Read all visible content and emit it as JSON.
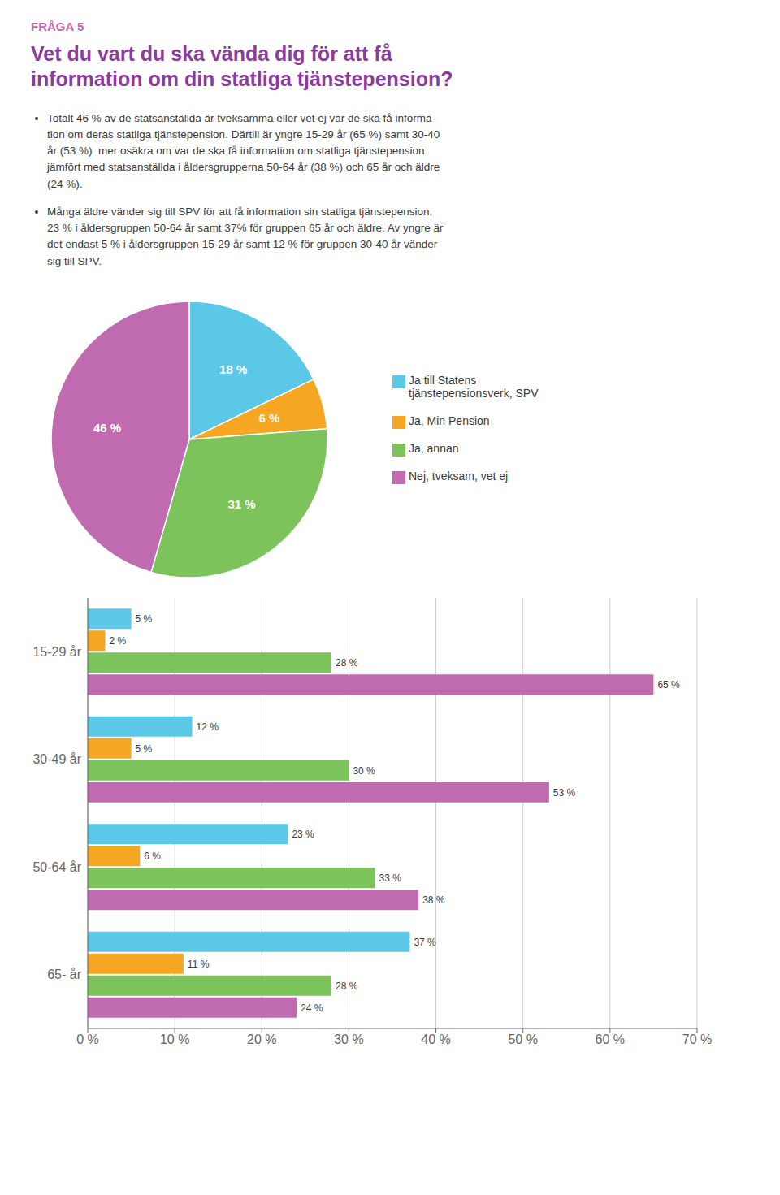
{
  "chart_data": [
    {
      "type": "pie",
      "subtitle": "FRÅGA 5",
      "title": "Vet du vart du ska vända dig för att få\ninformation om din statliga tjänstepension?",
      "annotations": [
        "Totalt 46 % av de statsanställda är tveksamma eller vet ej var de ska få informa-\ntion om deras statliga tjänstepension. Därtill är yngre 15-29 år (65 %) samt 30-40\når (53 %)  mer osäkra om var de ska få information om statliga tjänstepension\njämfört med statsanställda i åldersgrupperna 50-64 år (38 %) och 65 år och äldre\n(24 %).",
        "Många äldre vänder sig till SPV för att få information sin statliga tjänstepension,\n23 % i åldersgruppen 50-64 år samt 37% för gruppen 65 år och äldre. Av yngre är\ndet endast 5 % i åldersgruppen 15-29 år samt 12 % för gruppen 30-40 år vänder\nsig till SPV."
      ],
      "categories": [
        "Ja till Statens\ntjänstepensionsverk, SPV",
        "Ja, Min Pension",
        "Ja, annan",
        "Nej, tveksam, vet ej"
      ],
      "values": [
        18,
        6,
        31,
        46
      ],
      "value_labels": [
        "18 %",
        "6 %",
        "31 %",
        "46 %"
      ],
      "colors": [
        "#5BC8E8",
        "#F5A623",
        "#7DC35B",
        "#C06BB0"
      ],
      "data_labels": true,
      "legend": "right"
    },
    {
      "type": "bar",
      "orientation": "horizontal",
      "categories": [
        "15-29 år",
        "30-49 år",
        "50-64 år",
        "65- år"
      ],
      "series": [
        {
          "color": "#5BC8E8",
          "values": [
            5,
            12,
            23,
            37
          ],
          "value_labels": [
            "5 %",
            "12 %",
            "23 %",
            "37 %"
          ]
        },
        {
          "color": "#F5A623",
          "values": [
            2,
            5,
            6,
            11
          ],
          "value_labels": [
            "2 %",
            "5 %",
            "6 %",
            "11 %"
          ]
        },
        {
          "color": "#7DC35B",
          "values": [
            28,
            30,
            33,
            28
          ],
          "value_labels": [
            "28 %",
            "30 %",
            "33 %",
            "28 %"
          ]
        },
        {
          "color": "#C06BB0",
          "values": [
            65,
            53,
            38,
            24
          ],
          "value_labels": [
            "65 %",
            "53 %",
            "38 %",
            "24 %"
          ]
        }
      ],
      "xlim": [
        0,
        70
      ],
      "xticks": [
        {
          "value": 0,
          "label": "0 %"
        },
        {
          "value": 10,
          "label": "10 %"
        },
        {
          "value": 20,
          "label": "20 %"
        },
        {
          "value": 30,
          "label": "30 %"
        },
        {
          "value": 40,
          "label": "40 %"
        },
        {
          "value": 50,
          "label": "50 %"
        },
        {
          "value": 60,
          "label": "60 %"
        },
        {
          "value": 70,
          "label": "70 %"
        }
      ],
      "grid": true,
      "data_labels": true
    }
  ]
}
